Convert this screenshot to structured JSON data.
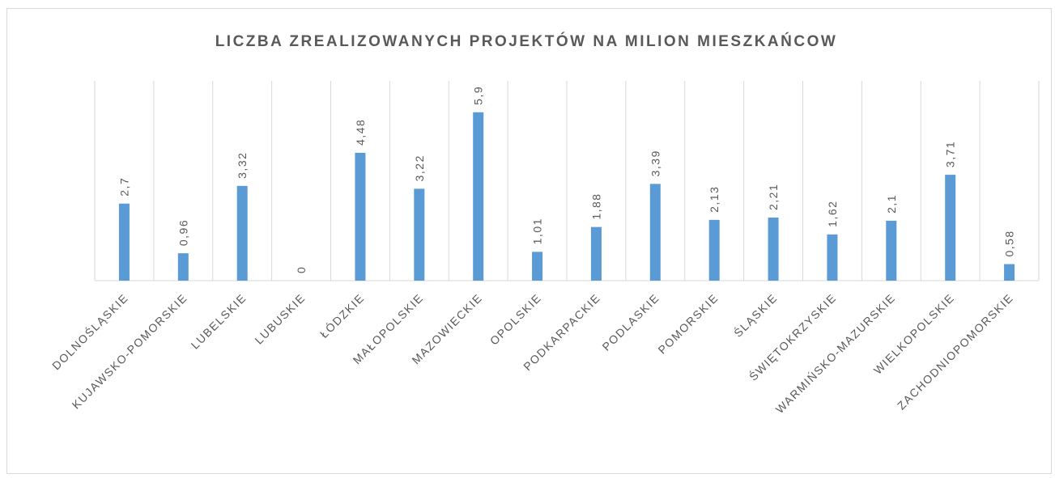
{
  "chart_data": {
    "type": "bar",
    "title": "LICZBA ZREALIZOWANYCH PROJEKTÓW NA MILION MIESZKAŃCOW",
    "categories": [
      "DOLNOŚLĄSKIE",
      "KUJAWSKO-POMORSKIE",
      "LUBELSKIE",
      "LUBUSKIE",
      "ŁÓDZKIE",
      "MAŁOPOLSKIE",
      "MAZOWIECKIE",
      "OPOLSKIE",
      "PODKARPACKIE",
      "PODLASKIE",
      "POMORSKIE",
      "ŚLĄSKIE",
      "ŚWIĘTOKRZYSKIE",
      "WARMIŃSKO-MAZURSKIE",
      "WIELKOPOLSKIE",
      "ZACHODNIOPOMORSKIE"
    ],
    "values": [
      2.7,
      0.96,
      3.32,
      0,
      4.48,
      3.22,
      5.9,
      1.01,
      1.88,
      3.39,
      2.13,
      2.21,
      1.62,
      2.1,
      3.71,
      0.58
    ],
    "value_labels": [
      "2,7",
      "0,96",
      "3,32",
      "0",
      "4,48",
      "3,22",
      "5,9",
      "1,01",
      "1,88",
      "3,39",
      "2,13",
      "2,21",
      "1,62",
      "2,1",
      "3,71",
      "0,58"
    ],
    "color": "#5b9bd5",
    "ylim": [
      0,
      7
    ],
    "grid": true
  }
}
